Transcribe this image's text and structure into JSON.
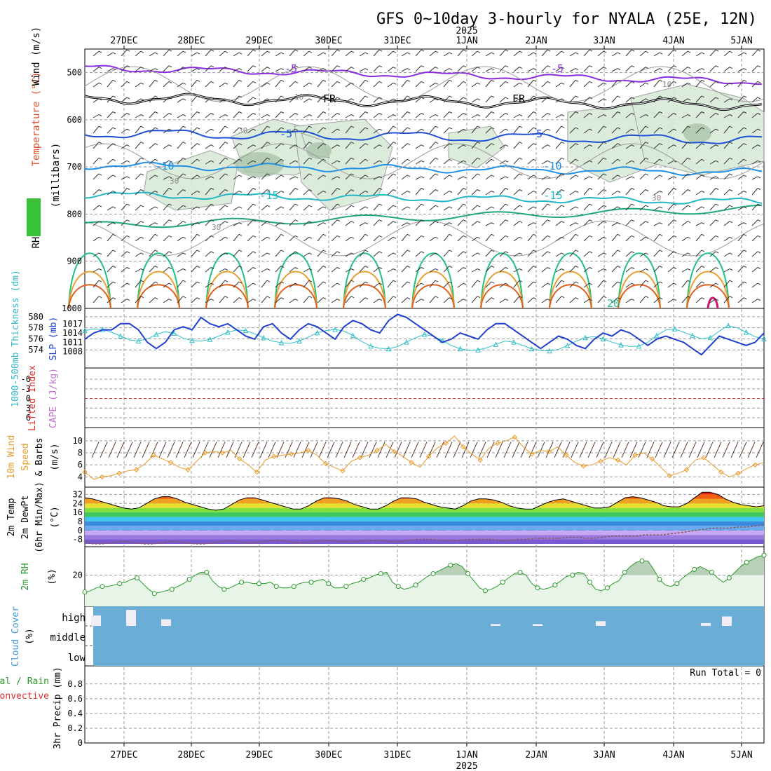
{
  "chart_data": [
    {
      "type": "contour",
      "panel": "upper-air",
      "title": "GFS 0~10day 3-hourly for NYALA (25E, 12N)",
      "top_year": "2025",
      "bottom_year": "2025",
      "dates": [
        "27DEC",
        "28DEC",
        "29DEC",
        "30DEC",
        "31DEC",
        "1JAN",
        "2JAN",
        "3JAN",
        "4JAN",
        "5JAN"
      ],
      "ylabel_parts": [
        "RH (%)",
        "Temperature (°C)",
        "Wind (m/s)"
      ],
      "ylabel_units": "(millibars)",
      "y_ticks": [
        500,
        600,
        700,
        800,
        900,
        1000
      ],
      "temperature_contours": [
        {
          "label": "-5",
          "level": "505",
          "color": "#8a2be2"
        },
        {
          "label": "FR",
          "level": "560",
          "color": "#000000"
        },
        {
          "label": "-5",
          "level": "640",
          "color": "#1e50d8"
        },
        {
          "label": "-10",
          "level": "700",
          "color": "#1e90e8"
        },
        {
          "label": "-15",
          "level": "765",
          "color": "#22b8c8"
        },
        {
          "label": "20",
          "level": "960",
          "color": "#20c080"
        }
      ],
      "rh_labels": [
        "10",
        "30"
      ]
    },
    {
      "type": "line",
      "panel": "slp-thickness",
      "ylabel_left": "1000-500mb Thickness (dm)",
      "ylabel_right": "SLP (mb)",
      "thickness_ticks": [
        574,
        576,
        578,
        580
      ],
      "slp_ticks": [
        1008,
        1011,
        1014,
        1017
      ],
      "series": [
        {
          "name": "SLP (mb)",
          "color": "#1f3fd0",
          "values": [
            1012,
            1014,
            1015,
            1015,
            1017,
            1017,
            1015,
            1011,
            1009,
            1011,
            1015,
            1016,
            1015,
            1019,
            1017,
            1016,
            1017,
            1015,
            1013,
            1012,
            1016,
            1017,
            1014,
            1012,
            1015,
            1017,
            1016,
            1014,
            1012,
            1016,
            1018,
            1017,
            1015,
            1014,
            1018,
            1020,
            1019,
            1017,
            1015,
            1013,
            1011,
            1012,
            1014,
            1013,
            1012,
            1015,
            1017,
            1017,
            1015,
            1013,
            1011,
            1009,
            1011,
            1013,
            1012,
            1010,
            1009,
            1012,
            1014,
            1013,
            1015,
            1014,
            1012,
            1010,
            1012,
            1013,
            1012,
            1011,
            1009,
            1007,
            1010,
            1013,
            1012,
            1011,
            1010,
            1011,
            1014
          ]
        },
        {
          "name": "1000-500mb Thickness (dm)",
          "color": "#30c0c8",
          "values": [
            577.5,
            577.8,
            577.7,
            577.2,
            576.5,
            575.8,
            575.6,
            576.0,
            576.8,
            577.3,
            577.0,
            576.1,
            575.7,
            575.6,
            575.9,
            576.5,
            577.2,
            577.6,
            577.5,
            576.9,
            576.2,
            575.6,
            575.3,
            575.2,
            575.6,
            576.3,
            577.1,
            577.5,
            577.7,
            577.4,
            576.6,
            575.5,
            574.7,
            574.3,
            574.2,
            574.6,
            575.4,
            576.2,
            576.8,
            576.5,
            575.7,
            574.8,
            574.2,
            573.9,
            574.0,
            574.4,
            575.0,
            575.6,
            575.4,
            574.8,
            574.2,
            573.9,
            573.8,
            574.1,
            574.8,
            575.6,
            576.2,
            576.4,
            576.0,
            575.4,
            574.9,
            574.6,
            574.7,
            575.4,
            576.6,
            577.6,
            577.8,
            577.2,
            576.6,
            576.0,
            576.2,
            577.4,
            578.4,
            578.0,
            577.2,
            576.4,
            576.0
          ]
        }
      ]
    },
    {
      "type": "line",
      "panel": "cape-li",
      "ylabel_left": "Lifted Index",
      "ylabel_right": "CAPE (J/kg)",
      "li_ticks": [
        "-6",
        "-3",
        "0",
        "3",
        "6"
      ]
    },
    {
      "type": "line",
      "panel": "wind10m",
      "ylabel_left": "10m Wind",
      "ylabel_middle": "Speed",
      "ylabel_right": "& Barbs",
      "ylabel_units": "(m/s)",
      "y_ticks": [
        4,
        6,
        8,
        10
      ],
      "series": [
        {
          "name": "Speed",
          "color": "#e89a2a",
          "values": [
            4.8,
            3.6,
            4.0,
            4.2,
            4.6,
            5.0,
            5.2,
            6.2,
            7.6,
            7.0,
            6.4,
            5.6,
            5.2,
            6.6,
            8.0,
            8.2,
            8.0,
            8.4,
            7.0,
            6.0,
            4.8,
            6.8,
            7.4,
            7.6,
            7.8,
            8.0,
            8.4,
            7.6,
            6.2,
            5.6,
            5.0,
            6.6,
            7.2,
            7.6,
            8.4,
            9.4,
            8.2,
            7.4,
            6.4,
            5.6,
            7.4,
            8.8,
            9.6,
            10.8,
            9.0,
            7.8,
            6.8,
            8.8,
            9.6,
            10.0,
            10.6,
            9.0,
            7.8,
            8.4,
            8.2,
            9.0,
            7.6,
            6.4,
            5.8,
            6.0,
            6.6,
            7.2,
            6.8,
            6.0,
            7.6,
            8.0,
            7.0,
            5.6,
            4.2,
            4.6,
            5.2,
            6.8,
            7.2,
            6.0,
            4.8,
            4.0,
            4.6,
            5.4,
            6.0,
            6.4
          ]
        }
      ]
    },
    {
      "type": "area",
      "panel": "temp2m",
      "ylabel_parts": [
        "2m Temp",
        "2m DewPt",
        "(6hr Min/Max)"
      ],
      "ylabel_units": "(°C)",
      "y_ticks": [
        -8,
        0,
        8,
        16,
        24,
        32
      ],
      "series": [
        {
          "name": "2m Temp",
          "color": "#000000",
          "values": [
            29,
            28,
            26,
            24,
            22,
            20,
            19,
            20,
            24,
            28,
            30,
            30,
            28,
            25,
            23,
            21,
            19,
            18,
            19,
            23,
            27,
            29,
            29,
            27,
            25,
            23,
            21,
            19,
            19,
            22,
            26,
            29,
            29,
            28,
            26,
            23,
            21,
            19,
            19,
            22,
            26,
            29,
            29,
            28,
            25,
            23,
            21,
            20,
            19,
            22,
            26,
            28,
            28,
            27,
            25,
            22,
            20,
            19,
            19,
            22,
            25,
            27,
            28,
            26,
            24,
            22,
            20,
            20,
            21,
            25,
            29,
            30,
            29,
            27,
            25,
            22,
            21,
            21,
            24,
            29,
            34,
            34,
            32,
            28,
            25,
            23,
            22,
            21,
            22
          ]
        },
        {
          "name": "2m DewPt",
          "color": "#8a5a5a",
          "values": [
            -10,
            -12,
            -12,
            -11,
            -10,
            -10,
            -11,
            -12,
            -12,
            -11,
            -10,
            -10,
            -11,
            -12,
            -12,
            -11,
            -10,
            -9,
            -10,
            -11,
            -11,
            -10,
            -9,
            -9,
            -10,
            -11,
            -11,
            -10,
            -9,
            -9,
            -10,
            -10,
            -10,
            -9,
            -9,
            -9,
            -10,
            -10,
            -9,
            -8,
            -8,
            -8,
            -9,
            -9,
            -9,
            -8,
            -8,
            -8,
            -8,
            -9,
            -9,
            -8,
            -8,
            -7,
            -7,
            -7,
            -7,
            -6,
            -6,
            -7,
            -7,
            -6,
            -5,
            -5,
            -5,
            -5,
            -4,
            -4,
            -4,
            -3,
            -2,
            -1,
            0,
            1,
            2,
            2,
            2,
            3,
            3,
            4,
            5
          ]
        }
      ]
    },
    {
      "type": "area",
      "panel": "rh2m",
      "ylabel": "2m RH",
      "ylabel_units": "(%)",
      "y_ticks": [
        20
      ],
      "series": [
        {
          "name": "2m RH",
          "color": "#2a9a2a",
          "values": [
            8,
            9,
            11,
            12,
            12,
            13,
            14,
            15,
            17,
            18,
            14,
            10,
            7,
            8,
            9,
            10,
            12,
            14,
            17,
            20,
            22,
            22,
            16,
            12,
            10,
            11,
            13,
            15,
            15,
            14,
            14,
            14,
            15,
            12,
            11,
            11,
            12,
            14,
            15,
            15,
            16,
            17,
            14,
            11,
            11,
            12,
            14,
            15,
            17,
            18,
            20,
            21,
            22,
            15,
            12,
            10,
            11,
            13,
            16,
            19,
            21,
            23,
            25,
            27,
            28,
            26,
            21,
            16,
            11,
            9,
            10,
            12,
            15,
            18,
            21,
            22,
            20,
            14,
            11,
            10,
            11,
            13,
            16,
            19,
            20,
            22,
            21,
            15,
            10,
            9,
            11,
            14,
            16,
            22,
            26,
            29,
            30,
            30,
            24,
            17,
            13,
            12,
            14,
            18,
            21,
            24,
            26,
            24,
            22,
            18,
            15,
            18,
            22,
            26,
            29,
            31,
            33,
            34
          ]
        }
      ]
    },
    {
      "type": "bar",
      "panel": "cloud",
      "ylabel": "Cloud Cover",
      "ylabel_units": "(%)",
      "levels": [
        "high",
        "middle",
        "low"
      ],
      "high_cloud_bars": [
        {
          "date": "26DEC",
          "value": 55
        },
        {
          "date": "27DEC",
          "value": 85
        },
        {
          "date": "27DEC",
          "value": 35
        },
        {
          "date": "1JAN",
          "value": 10
        },
        {
          "date": "2JAN",
          "value": 10
        },
        {
          "date": "3JAN",
          "value": 25
        },
        {
          "date": "4JAN",
          "value": 15
        },
        {
          "date": "5JAN",
          "value": 50
        }
      ]
    },
    {
      "type": "bar",
      "panel": "precip",
      "ylabel_left": "Total / Rain",
      "ylabel_left2": "Convective",
      "ylabel_right": "3hr Precip (mm)",
      "y_ticks": [
        "0",
        "0.2",
        "0.4",
        "0.6",
        "0.8"
      ],
      "run_total_label": "Run Total = 0"
    }
  ]
}
